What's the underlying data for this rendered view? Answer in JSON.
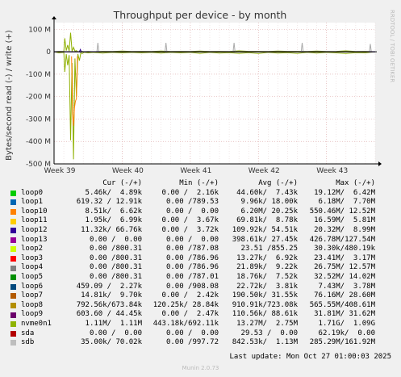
{
  "chart_data": {
    "type": "line",
    "title": "Throughput per device - by month",
    "ylabel": "Bytes/second read (-) / write (+)",
    "side_label": "RRDTOOL / TOBI OETIKER",
    "ylim": [
      -500,
      130
    ],
    "yticks": [
      {
        "value": 100,
        "label": "100 M"
      },
      {
        "value": 0,
        "label": "0"
      },
      {
        "value": -100,
        "label": "-100 M"
      },
      {
        "value": -200,
        "label": "-200 M"
      },
      {
        "value": -300,
        "label": "-300 M"
      },
      {
        "value": -400,
        "label": "-400 M"
      },
      {
        "value": -500,
        "label": "-500 M"
      }
    ],
    "xlim": [
      0,
      33
    ],
    "xticks": [
      {
        "value": 0,
        "label": "Week 39"
      },
      {
        "value": 7,
        "label": "Week 40"
      },
      {
        "value": 14,
        "label": "Week 41"
      },
      {
        "value": 21,
        "label": "Week 42"
      },
      {
        "value": 28,
        "label": "Week 43"
      }
    ],
    "grid": true,
    "series": [
      {
        "name": "nvme0n1",
        "color": "#8fb000",
        "x": [
          0,
          0.5,
          1,
          1.1,
          1.25,
          1.4,
          1.55,
          1.7,
          1.85,
          2.0,
          2.15,
          2.3,
          2.45,
          2.6,
          2.75,
          2.9,
          3.1,
          3.5,
          4,
          5,
          6,
          7,
          8,
          9,
          10,
          11,
          12,
          13,
          14,
          15,
          16,
          17,
          18,
          19,
          20,
          21,
          22,
          23,
          24,
          25,
          26,
          27,
          28,
          29,
          30,
          31,
          32,
          33
        ],
        "write": [
          0,
          2,
          1,
          60,
          5,
          30,
          3,
          85,
          2,
          20,
          3,
          5,
          0,
          1,
          0,
          2,
          0,
          1,
          0,
          2,
          1,
          3,
          1,
          2,
          1,
          3,
          1,
          2,
          1,
          3,
          1,
          2,
          1,
          4,
          2,
          2,
          1,
          3,
          2,
          2,
          1,
          3,
          1,
          2,
          4,
          1,
          2,
          0
        ],
        "read": [
          0,
          -5,
          -3,
          -90,
          -10,
          -60,
          -15,
          -395,
          -50,
          -480,
          -30,
          -200,
          -10,
          -40,
          -5,
          -8,
          -2,
          -5,
          -3,
          -6,
          -3,
          -5,
          -3,
          -5,
          -3,
          -6,
          -3,
          -5,
          -3,
          -7,
          -3,
          -6,
          -4,
          -7,
          -4,
          -8,
          -3,
          -6,
          -4,
          -7,
          -3,
          -6,
          -3,
          -5,
          -8,
          -4,
          -5,
          0
        ]
      },
      {
        "name": "loop10",
        "color": "#ff7f00",
        "x": [
          1.8,
          1.9,
          2.0,
          2.1,
          2.2,
          2.3,
          2.4
        ],
        "write": [
          0,
          0,
          0,
          0,
          0,
          0,
          0
        ],
        "read": [
          -20,
          -280,
          -330,
          -250,
          -220,
          -210,
          -20
        ]
      },
      {
        "name": "sdb",
        "color": "#aaaaaa",
        "x": [
          0,
          4.4,
          4.5,
          4.6,
          11.4,
          11.5,
          11.6,
          18.4,
          18.5,
          18.6,
          25.4,
          25.5,
          25.6,
          32.4,
          32.5,
          32.6,
          33
        ],
        "write": [
          0,
          0,
          40,
          0,
          0,
          40,
          0,
          0,
          40,
          0,
          0,
          40,
          0,
          0,
          35,
          0,
          0
        ],
        "read": [
          0,
          0,
          -3,
          0,
          0,
          -3,
          0,
          0,
          -3,
          0,
          0,
          -3,
          0,
          0,
          -3,
          0,
          0
        ]
      },
      {
        "name": "loop12",
        "color": "#330099",
        "x": [
          0,
          2.6,
          2.7,
          2.8,
          33
        ],
        "write": [
          0,
          0,
          10,
          0,
          0
        ],
        "read": [
          0,
          0,
          -2,
          0,
          0
        ]
      }
    ]
  },
  "legend": {
    "headers": [
      "Cur (-/+)",
      "Min (-/+)",
      "Avg (-/+)",
      "Max (-/+)"
    ],
    "rows": [
      {
        "name": "loop0",
        "color": "#00cc00",
        "cur": "5.46k/  4.89k",
        "min": "0.00 /  2.16k",
        "avg": "44.60k/  7.43k",
        "max": "19.12M/  6.42M"
      },
      {
        "name": "loop1",
        "color": "#0066b3",
        "cur": "619.32 / 12.91k",
        "min": "0.00 /789.53",
        "avg": "9.96k/ 18.00k",
        "max": "6.18M/  7.70M"
      },
      {
        "name": "loop10",
        "color": "#ff8000",
        "cur": "8.51k/  6.62k",
        "min": "0.00 /  0.00",
        "avg": "6.20M/ 20.25k",
        "max": "550.46M/ 12.52M"
      },
      {
        "name": "loop11",
        "color": "#ffcc00",
        "cur": "1.95k/  6.99k",
        "min": "0.00 /  3.67k",
        "avg": "69.81k/  8.78k",
        "max": "16.59M/  5.81M"
      },
      {
        "name": "loop12",
        "color": "#330099",
        "cur": "11.32k/ 66.76k",
        "min": "0.00 /  3.72k",
        "avg": "109.92k/ 54.51k",
        "max": "20.32M/  8.99M"
      },
      {
        "name": "loop13",
        "color": "#990099",
        "cur": "0.00 /  0.00",
        "min": "0.00 /  0.00",
        "avg": "398.61k/ 27.45k",
        "max": "426.78M/127.54M"
      },
      {
        "name": "loop2",
        "color": "#ccff00",
        "cur": "0.00 /800.31",
        "min": "0.00 /787.08",
        "avg": "23.51 /855.25",
        "max": "30.30k/480.19k"
      },
      {
        "name": "loop3",
        "color": "#ff0000",
        "cur": "0.00 /800.31",
        "min": "0.00 /786.96",
        "avg": "13.27k/  6.92k",
        "max": "23.41M/  3.17M"
      },
      {
        "name": "loop4",
        "color": "#808080",
        "cur": "0.00 /800.31",
        "min": "0.00 /786.96",
        "avg": "21.89k/  9.22k",
        "max": "26.75M/ 12.57M"
      },
      {
        "name": "loop5",
        "color": "#008f00",
        "cur": "0.00 /800.31",
        "min": "0.00 /787.01",
        "avg": "18.76k/  7.52k",
        "max": "32.52M/ 14.02M"
      },
      {
        "name": "loop6",
        "color": "#00487d",
        "cur": "459.09 /  2.27k",
        "min": "0.00 /908.08",
        "avg": "22.72k/  3.81k",
        "max": "7.43M/  3.78M"
      },
      {
        "name": "loop7",
        "color": "#b35a00",
        "cur": "14.81k/  9.70k",
        "min": "0.00 /  2.42k",
        "avg": "190.50k/ 31.55k",
        "max": "76.16M/ 28.60M"
      },
      {
        "name": "loop8",
        "color": "#b38f00",
        "cur": "792.56k/673.84k",
        "min": "120.25k/ 28.84k",
        "avg": "910.91k/723.08k",
        "max": "565.55M/408.61M"
      },
      {
        "name": "loop9",
        "color": "#6b006b",
        "cur": "603.60 / 44.45k",
        "min": "0.00 /  2.47k",
        "avg": "110.56k/ 88.61k",
        "max": "31.81M/ 31.62M"
      },
      {
        "name": "nvme0n1",
        "color": "#8fb300",
        "cur": "1.11M/  1.11M",
        "min": "443.18k/692.11k",
        "avg": "13.27M/  2.75M",
        "max": "1.71G/  1.09G"
      },
      {
        "name": "sda",
        "color": "#b30000",
        "cur": "0.00 /  0.00",
        "min": "0.00 /  0.00",
        "avg": "29.53 /  0.00",
        "max": "62.19k/  0.00"
      },
      {
        "name": "sdb",
        "color": "#bebebe",
        "cur": "35.00k/ 70.02k",
        "min": "0.00 /997.72",
        "avg": "842.53k/  1.13M",
        "max": "285.29M/161.92M"
      }
    ]
  },
  "last_update": "Last update: Mon Oct 27 01:00:03 2025",
  "footer": "Munin 2.0.73"
}
